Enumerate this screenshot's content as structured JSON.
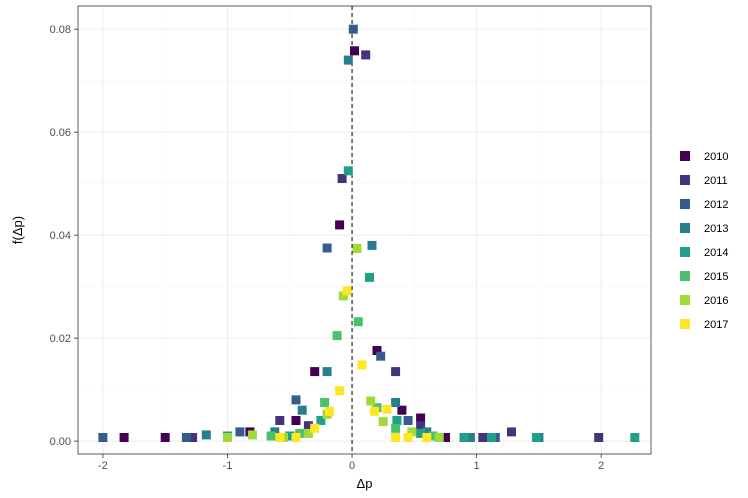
{
  "chart_data": {
    "type": "scatter",
    "title": "",
    "xlabel": "Δp",
    "ylabel": "f(Δp)",
    "xlim": [
      -2.2,
      2.4
    ],
    "ylim": [
      -0.0025,
      0.0845
    ],
    "xticks": [
      -2,
      -1,
      0,
      1,
      2
    ],
    "xtick_labels": [
      "-2",
      "-1",
      "0",
      "1",
      "2"
    ],
    "yticks": [
      0.0,
      0.02,
      0.04,
      0.06,
      0.08
    ],
    "ytick_labels": [
      "0.00",
      "0.02",
      "0.04",
      "0.06",
      "0.08"
    ],
    "grid": true,
    "reference_line": {
      "x": 0,
      "style": "dashed"
    },
    "legend": {
      "position": "right"
    },
    "colors": {
      "2010": "#440154",
      "2011": "#46337e",
      "2012": "#365c8d",
      "2013": "#277f8e",
      "2014": "#1fa187",
      "2015": "#4ac16d",
      "2016": "#a0da39",
      "2017": "#fde725",
      "panel_border": "#333333",
      "grid_major": "#ebebeb",
      "grid_minor": "#f5f5f5"
    },
    "series": [
      {
        "name": "2010",
        "points": [
          [
            -1.83,
            0.0007
          ],
          [
            -1.5,
            0.0007
          ],
          [
            -0.82,
            0.0018
          ],
          [
            -0.45,
            0.004
          ],
          [
            -0.3,
            0.0135
          ],
          [
            -0.1,
            0.042
          ],
          [
            0.02,
            0.0758
          ],
          [
            0.2,
            0.0176
          ],
          [
            0.4,
            0.006
          ],
          [
            0.55,
            0.0045
          ],
          [
            0.75,
            0.0007
          ],
          [
            0.9,
            0.0007
          ]
        ]
      },
      {
        "name": "2011",
        "points": [
          [
            -1.28,
            0.0007
          ],
          [
            -0.58,
            0.004
          ],
          [
            -0.35,
            0.003
          ],
          [
            -0.08,
            0.051
          ],
          [
            0.11,
            0.075
          ],
          [
            0.35,
            0.0135
          ],
          [
            0.55,
            0.003
          ],
          [
            1.05,
            0.0007
          ],
          [
            1.28,
            0.0018
          ],
          [
            1.98,
            0.0007
          ]
        ]
      },
      {
        "name": "2012",
        "points": [
          [
            -2.0,
            0.0007
          ],
          [
            -1.33,
            0.0007
          ],
          [
            -0.9,
            0.0018
          ],
          [
            -0.45,
            0.008
          ],
          [
            -0.2,
            0.0375
          ],
          [
            0.01,
            0.08
          ],
          [
            0.23,
            0.0165
          ],
          [
            0.45,
            0.004
          ],
          [
            0.7,
            0.0007
          ],
          [
            1.15,
            0.0007
          ]
        ]
      },
      {
        "name": "2013",
        "points": [
          [
            -1.17,
            0.0012
          ],
          [
            -0.62,
            0.0018
          ],
          [
            -0.4,
            0.006
          ],
          [
            -0.2,
            0.0135
          ],
          [
            -0.03,
            0.074
          ],
          [
            0.16,
            0.038
          ],
          [
            0.35,
            0.0075
          ],
          [
            0.6,
            0.0018
          ],
          [
            0.95,
            0.0007
          ],
          [
            1.5,
            0.0007
          ]
        ]
      },
      {
        "name": "2014",
        "points": [
          [
            -1.0,
            0.001
          ],
          [
            -0.5,
            0.001
          ],
          [
            -0.25,
            0.004
          ],
          [
            -0.03,
            0.0525
          ],
          [
            0.14,
            0.0318
          ],
          [
            0.36,
            0.004
          ],
          [
            0.55,
            0.0015
          ],
          [
            0.9,
            0.0007
          ],
          [
            1.12,
            0.0007
          ],
          [
            1.48,
            0.0007
          ],
          [
            2.27,
            0.0007
          ]
        ]
      },
      {
        "name": "2015",
        "points": [
          [
            -0.65,
            0.001
          ],
          [
            -0.42,
            0.0015
          ],
          [
            -0.22,
            0.0075
          ],
          [
            -0.12,
            0.0205
          ],
          [
            0.05,
            0.0232
          ],
          [
            0.2,
            0.0065
          ],
          [
            0.35,
            0.0025
          ],
          [
            0.65,
            0.001
          ]
        ]
      },
      {
        "name": "2016",
        "points": [
          [
            -1.0,
            0.0007
          ],
          [
            -0.8,
            0.0012
          ],
          [
            -0.55,
            0.0007
          ],
          [
            -0.35,
            0.0015
          ],
          [
            -0.2,
            0.0052
          ],
          [
            -0.07,
            0.0282
          ],
          [
            0.04,
            0.0374
          ],
          [
            0.15,
            0.0078
          ],
          [
            0.25,
            0.0038
          ],
          [
            0.48,
            0.0018
          ],
          [
            0.7,
            0.0007
          ]
        ]
      },
      {
        "name": "2017",
        "points": [
          [
            -0.58,
            0.0007
          ],
          [
            -0.45,
            0.0007
          ],
          [
            -0.3,
            0.0025
          ],
          [
            -0.18,
            0.0058
          ],
          [
            -0.1,
            0.0098
          ],
          [
            -0.04,
            0.0292
          ],
          [
            0.08,
            0.0148
          ],
          [
            0.18,
            0.0058
          ],
          [
            0.28,
            0.0062
          ],
          [
            0.35,
            0.0007
          ],
          [
            0.45,
            0.0007
          ],
          [
            0.6,
            0.0007
          ]
        ]
      }
    ]
  }
}
